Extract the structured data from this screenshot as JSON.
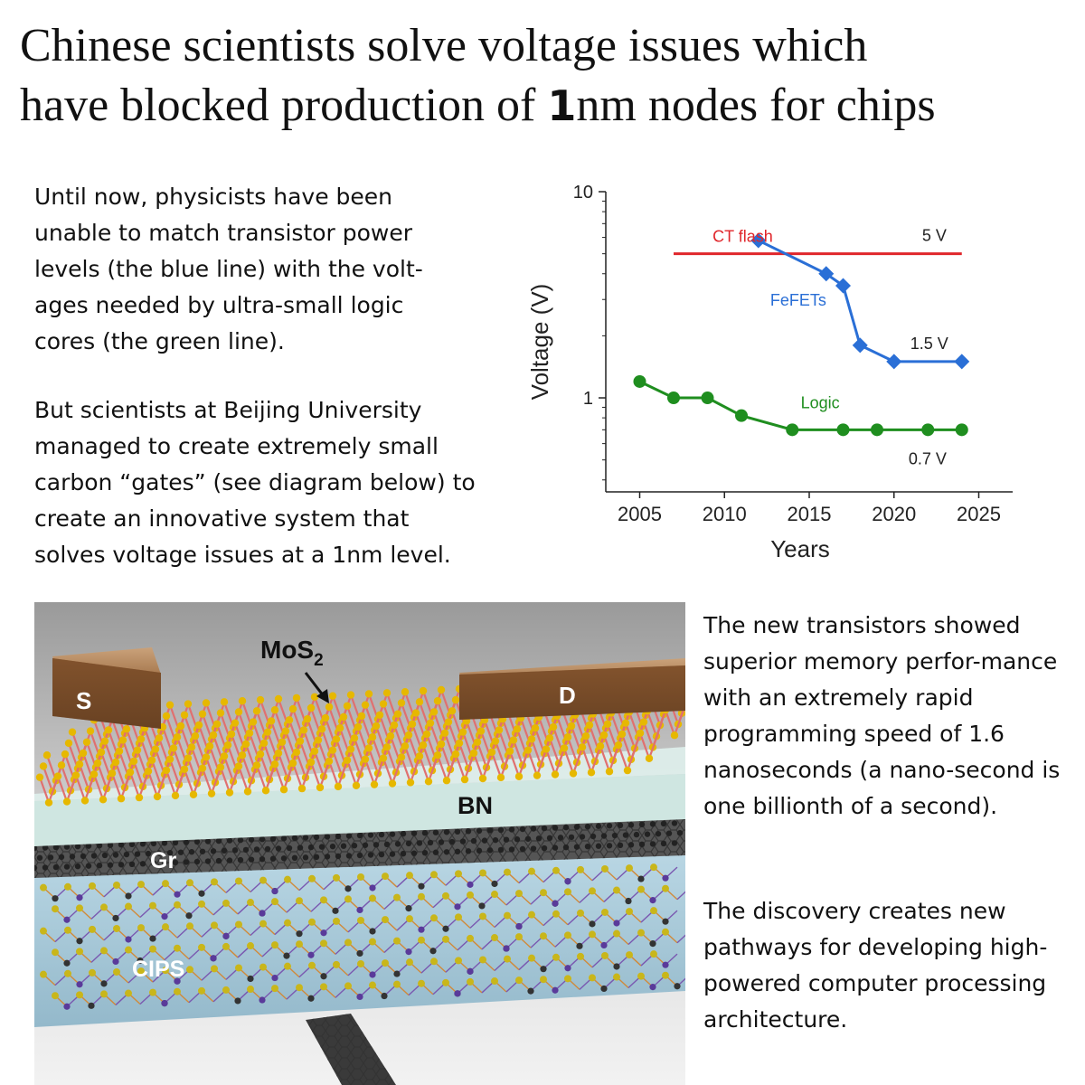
{
  "headline": {
    "line1": "Chinese scientists solve voltage issues which",
    "line2_pre": "have blocked production of ",
    "line2_big": "1",
    "line2_post": "nm nodes for chips"
  },
  "paragraphs": {
    "p1": "Until now, physicists have been unable to match transistor power levels (the blue line) with the volt-ages needed by ultra-small logic cores (the green line).",
    "p2": "But scientists at Beijing University managed to create extremely small carbon “gates”  (see diagram below) to create an innovative system that solves voltage issues at a 1nm level.",
    "p3": "The new transistors showed superior memory perfor-mance with an extremely rapid programming speed of 1.6 nanoseconds (a nano-second is one billionth of a second).",
    "p4": "The discovery creates new pathways for developing high-powered computer processing architecture."
  },
  "chart_data": {
    "type": "line",
    "xlabel": "Years",
    "ylabel": "Voltage (V)",
    "xlim": [
      2003,
      2027
    ],
    "ylim": [
      0.35,
      10
    ],
    "yscale": "log",
    "xticks": [
      2005,
      2010,
      2015,
      2020,
      2025
    ],
    "yticks": [
      1,
      10
    ],
    "series": [
      {
        "name": "CT flash",
        "color": "#e0262b",
        "marker": "none",
        "x": [
          2007,
          2024
        ],
        "y": [
          5,
          5
        ],
        "annotation": "5 V"
      },
      {
        "name": "FeFETs",
        "color": "#2a6fd6",
        "marker": "diamond",
        "x": [
          2012,
          2016,
          2017,
          2018,
          2020,
          2024
        ],
        "y": [
          5.8,
          4.0,
          3.5,
          1.8,
          1.5,
          1.5
        ],
        "annotation": "1.5 V"
      },
      {
        "name": "Logic",
        "color": "#1f8e1f",
        "marker": "circle",
        "x": [
          2005,
          2007,
          2009,
          2011,
          2014,
          2017,
          2019,
          2022,
          2024
        ],
        "y": [
          1.2,
          1.0,
          1.0,
          0.82,
          0.7,
          0.7,
          0.7,
          0.7,
          0.7
        ],
        "annotation": "0.7 V"
      }
    ]
  },
  "illustration": {
    "labels": {
      "mos2_main": "MoS",
      "mos2_sub": "2",
      "source": "S",
      "drain": "D",
      "bn": "BN",
      "gr": "Gr",
      "cips": "CIPS"
    },
    "colors": {
      "electrode": "#8a5a32",
      "sulfur": "#e6b800",
      "molybdenum": "#e07070",
      "bn": "#cde6e0",
      "graphene": "#222222",
      "cips": "#9fc4d6"
    }
  }
}
